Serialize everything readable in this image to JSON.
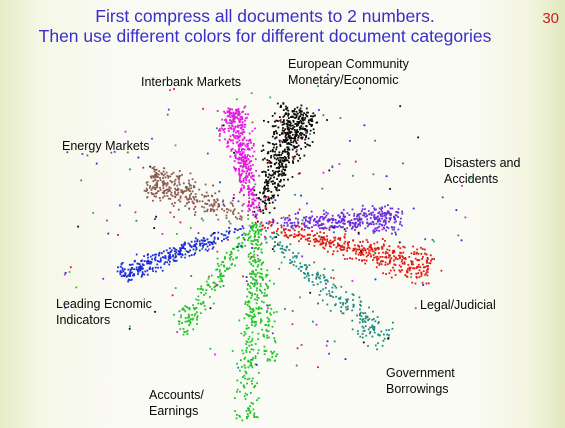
{
  "slide": {
    "title_line1": "First compress all documents to 2 numbers.",
    "title_line2": "Then use different colors for different document categories",
    "page_number": "30"
  },
  "chart_data": {
    "type": "scatter",
    "title": "",
    "axes_visible": false,
    "grid": false,
    "legend": "none (categories labeled directly next to their clusters)",
    "categories": [
      {
        "key": "interbank",
        "label_lines": [
          "Interbank Markets"
        ],
        "color": "#e21be0"
      },
      {
        "key": "european",
        "label_lines": [
          "European Community",
          "Monetary/Economic"
        ],
        "color": "#0a0a0a"
      },
      {
        "key": "energy",
        "label_lines": [
          "Energy Markets"
        ],
        "color": "#8b5a52"
      },
      {
        "key": "disasters",
        "label_lines": [
          "Disasters and",
          "Accidents"
        ],
        "color": "#6a2ce0"
      },
      {
        "key": "leading",
        "label_lines": [
          "Leading Ecnomic",
          "Indicators"
        ],
        "color": "#1a2bd8"
      },
      {
        "key": "legal",
        "label_lines": [
          "Legal/Judicial"
        ],
        "color": "#e01a12"
      },
      {
        "key": "accounts",
        "label_lines": [
          "Accounts/",
          "Earnings"
        ],
        "color": "#22c42a"
      },
      {
        "key": "government",
        "label_lines": [
          "Government",
          "Borrowings"
        ],
        "color": "#1f8a82"
      }
    ]
  }
}
